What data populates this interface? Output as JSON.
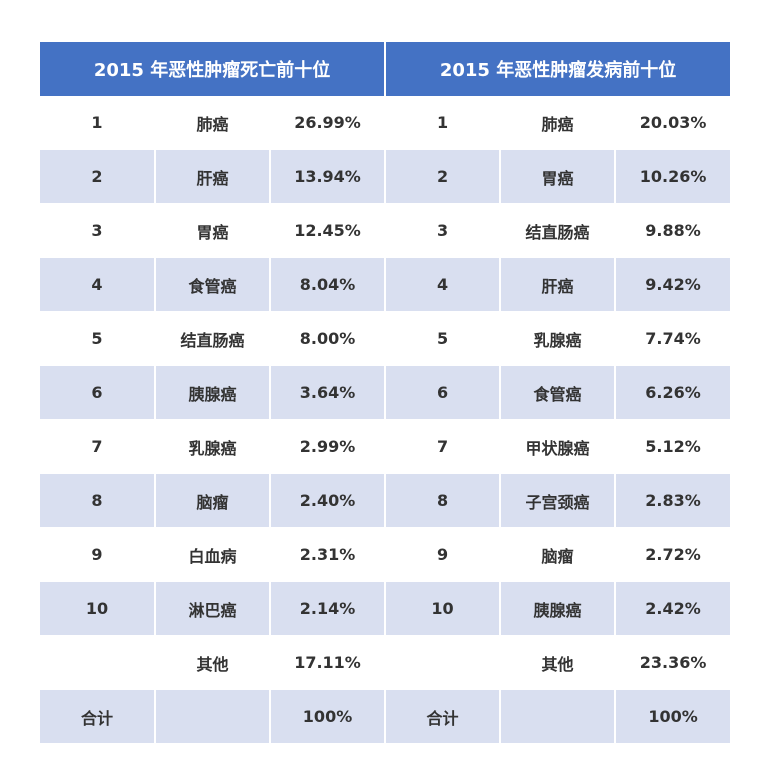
{
  "headers": [
    "2015 年恶性肿瘤死亡前十位",
    "2015 年恶性肿瘤发病前十位"
  ],
  "rows": [
    [
      "1",
      "肺癌",
      "26.99%",
      "1",
      "肺癌",
      "20.03%"
    ],
    [
      "2",
      "肝癌",
      "13.94%",
      "2",
      "胃癌",
      "10.26%"
    ],
    [
      "3",
      "胃癌",
      "12.45%",
      "3",
      "结直肠癌",
      "9.88%"
    ],
    [
      "4",
      "食管癌",
      "8.04%",
      "4",
      "肝癌",
      "9.42%"
    ],
    [
      "5",
      "结直肠癌",
      "8.00%",
      "5",
      "乳腺癌",
      "7.74%"
    ],
    [
      "6",
      "胰腺癌",
      "3.64%",
      "6",
      "食管癌",
      "6.26%"
    ],
    [
      "7",
      "乳腺癌",
      "2.99%",
      "7",
      "甲状腺癌",
      "5.12%"
    ],
    [
      "8",
      "脑瘤",
      "2.40%",
      "8",
      "子宫颈癌",
      "2.83%"
    ],
    [
      "9",
      "白血病",
      "2.31%",
      "9",
      "脑瘤",
      "2.72%"
    ],
    [
      "10",
      "淋巴癌",
      "2.14%",
      "10",
      "胰腺癌",
      "2.42%"
    ],
    [
      "",
      "其他",
      "17.11%",
      "",
      "其他",
      "23.36%"
    ],
    [
      "合计",
      "",
      "100%",
      "合计",
      "",
      "100%"
    ]
  ]
}
